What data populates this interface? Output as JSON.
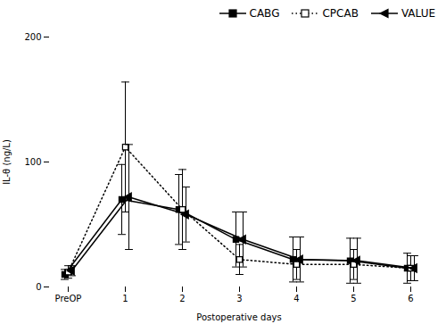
{
  "chart_data": {
    "type": "line",
    "categories": [
      "PreOP",
      "1",
      "2",
      "3",
      "4",
      "5",
      "6"
    ],
    "series": [
      {
        "name": "CABG",
        "color": "#000000",
        "marker": "square",
        "line_style": "solid",
        "values": [
          10,
          70,
          62,
          38,
          22,
          21,
          15
        ],
        "error": [
          4,
          28,
          28,
          22,
          18,
          18,
          12
        ]
      },
      {
        "name": "CPCAB",
        "color": "#000000",
        "marker": "open_square",
        "line_style": "dotted",
        "values": [
          12,
          112,
          62,
          22,
          18,
          18,
          15
        ],
        "error": [
          5,
          52,
          32,
          12,
          12,
          12,
          10
        ]
      },
      {
        "name": "VALUE",
        "color": "#000000",
        "marker": "triangle_left",
        "line_style": "solid",
        "values": [
          13,
          72,
          58,
          38,
          22,
          21,
          15
        ],
        "error": [
          4,
          42,
          22,
          22,
          18,
          18,
          10
        ]
      }
    ],
    "xlabel": "Postoperative days",
    "ylabel": "IL-θ (ng/L)",
    "ylim": [
      0,
      200
    ],
    "yticks": [
      0,
      100,
      200
    ],
    "legend": "upper right",
    "grid": false
  }
}
